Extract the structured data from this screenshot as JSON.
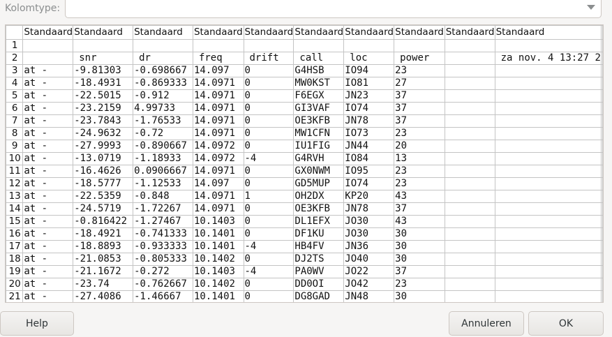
{
  "coltype_label": "Kolomtype:",
  "coltype_value": "",
  "column_types": [
    "Standaard",
    "Standaard",
    "Standaard",
    "Standaard",
    "Standaard",
    "Standaard",
    "Standaard",
    "Standaard",
    "Standaard",
    "Standaard"
  ],
  "rows": [
    {
      "n": "1",
      "cells": [
        "",
        "",
        "",
        "",
        "",
        "",
        "",
        "",
        "",
        ""
      ]
    },
    {
      "n": "2",
      "cells": [
        "",
        "snr",
        "dr",
        "freq",
        "drift",
        "call",
        "loc",
        "power",
        "",
        "za nov. 4 13:27 2"
      ]
    },
    {
      "n": "3",
      "cells": [
        "at -",
        "-9.81303",
        "-0.698667",
        "14.097",
        "0",
        "G4HSB",
        "IO94",
        "23",
        "",
        ""
      ]
    },
    {
      "n": "4",
      "cells": [
        "at -",
        "-18.4931",
        "-0.869333",
        "14.0971",
        "0",
        "MW0KST",
        "IO81",
        "27",
        "",
        ""
      ]
    },
    {
      "n": "5",
      "cells": [
        "at -",
        "-22.5015",
        "-0.912",
        "14.0971",
        "0",
        "F6EGX",
        "JN23",
        "37",
        "",
        ""
      ]
    },
    {
      "n": "6",
      "cells": [
        "at -",
        "-23.2159",
        "4.99733",
        "14.0971",
        "0",
        "GI3VAF",
        "IO74",
        "37",
        "",
        ""
      ]
    },
    {
      "n": "7",
      "cells": [
        "at -",
        "-23.7843",
        "-1.76533",
        "14.0971",
        "0",
        "OE3KFB",
        "JN78",
        "37",
        "",
        ""
      ]
    },
    {
      "n": "8",
      "cells": [
        "at -",
        "-24.9632",
        "-0.72",
        "14.0971",
        "0",
        "MW1CFN",
        "IO73",
        "23",
        "",
        ""
      ]
    },
    {
      "n": "9",
      "cells": [
        "at -",
        "-27.9993",
        "-0.890667",
        "14.0972",
        "0",
        "IU1FIG",
        "JN44",
        "20",
        "",
        ""
      ]
    },
    {
      "n": "10",
      "cells": [
        "at -",
        "-13.0719",
        "-1.18933",
        "14.0972",
        "-4",
        "G4RVH",
        "IO84",
        "13",
        "",
        ""
      ]
    },
    {
      "n": "11",
      "cells": [
        "at -",
        "-16.4626",
        "0.0906667",
        "14.0971",
        "0",
        "GX0NWM",
        "IO95",
        "23",
        "",
        ""
      ]
    },
    {
      "n": "12",
      "cells": [
        "at -",
        "-18.5777",
        "-1.12533",
        "14.097",
        "0",
        "GD5MUP",
        "IO74",
        "23",
        "",
        ""
      ]
    },
    {
      "n": "13",
      "cells": [
        "at -",
        "-22.5359",
        "-0.848",
        "14.0971",
        "1",
        "OH2DX",
        "KP20",
        "43",
        "",
        ""
      ]
    },
    {
      "n": "14",
      "cells": [
        "at -",
        "-24.5719",
        "-1.72267",
        "14.0971",
        "0",
        "OE3KFB",
        "JN78",
        "37",
        "",
        ""
      ]
    },
    {
      "n": "15",
      "cells": [
        "at -",
        "-0.816422",
        "-1.27467",
        "10.1403",
        "0",
        "DL1EFX",
        "JO30",
        "43",
        "",
        ""
      ]
    },
    {
      "n": "16",
      "cells": [
        "at -",
        "-18.4921",
        "-0.741333",
        "10.1401",
        "0",
        "DF1KU",
        "JO30",
        "30",
        "",
        ""
      ]
    },
    {
      "n": "17",
      "cells": [
        "at -",
        "-18.8893",
        "-0.933333",
        "10.1401",
        "-4",
        "HB4FV",
        "JN36",
        "30",
        "",
        ""
      ]
    },
    {
      "n": "18",
      "cells": [
        "at -",
        "-21.0853",
        "-0.805333",
        "10.1402",
        "0",
        "DJ2TS",
        "JO40",
        "30",
        "",
        ""
      ]
    },
    {
      "n": "19",
      "cells": [
        "at -",
        "-21.1672",
        "-0.272",
        "10.1403",
        "-4",
        "PA0WV",
        "JO22",
        "37",
        "",
        ""
      ]
    },
    {
      "n": "20",
      "cells": [
        "at -",
        "-23.74",
        "-0.762667",
        "10.1402",
        "0",
        "DD0OI",
        "JO42",
        "23",
        "",
        ""
      ]
    },
    {
      "n": "21",
      "cells": [
        "at -",
        "-27.4086",
        "-1.46667",
        "10.1401",
        "0",
        "DG8GAD",
        "JN48",
        "30",
        "",
        ""
      ]
    }
  ],
  "buttons": {
    "help": "Help",
    "cancel": "Annuleren",
    "ok": "OK"
  }
}
